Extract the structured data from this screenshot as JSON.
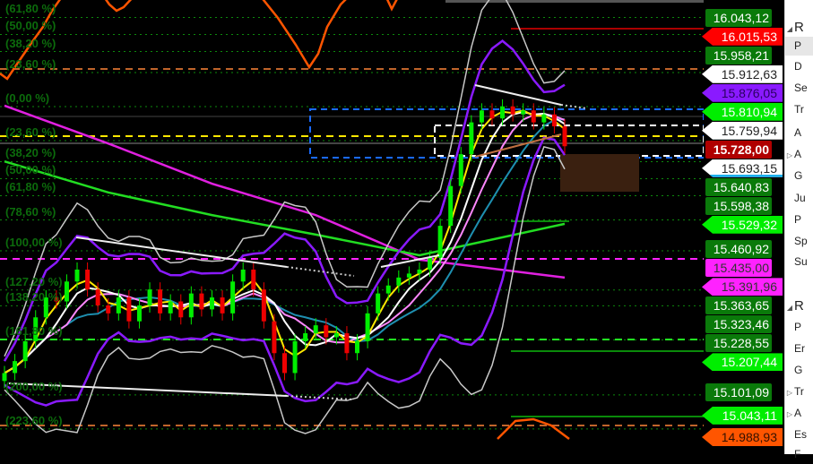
{
  "chart_data": {
    "type": "candlestick",
    "price_scale_ref": [
      16015.53,
      14988.93
    ],
    "closes": [
      15150,
      15180,
      15230,
      15290,
      15340,
      15330,
      15380,
      15410,
      15360,
      15320,
      15300,
      15340,
      15280,
      15320,
      15360,
      15300,
      15330,
      15290,
      15350,
      15310,
      15340,
      15300,
      15380,
      15410,
      15360,
      15280,
      15200,
      15150,
      15230,
      15250,
      15270,
      15240,
      15250,
      15200,
      15230,
      15300,
      15350,
      15370,
      15390,
      15400,
      15410,
      15440,
      15520,
      15620,
      15700,
      15780,
      15810,
      15790,
      15820,
      15800,
      15810,
      15780,
      15800,
      15770,
      15720
    ],
    "long_ma_magenta": {
      "index": [
        0,
        10,
        20,
        30,
        40,
        54
      ],
      "values": [
        15822,
        15727,
        15626,
        15547,
        15435,
        15390
      ],
      "color": "#e020e0"
    },
    "long_ma_green": {
      "index": [
        0,
        10,
        20,
        30,
        40,
        54
      ],
      "values": [
        15682,
        15604,
        15547,
        15498,
        15446,
        15525
      ],
      "color": "#22dd22"
    },
    "short_mas": [
      {
        "period": 3,
        "color": "#ffe800"
      },
      {
        "period": 5,
        "color": "#ffffff"
      },
      {
        "period": 7,
        "color": "#ff88ff"
      },
      {
        "period": 10,
        "color": "#1e8fb0"
      }
    ],
    "bollinger": [
      {
        "period": 8,
        "k": 2,
        "color": "#8a1aff"
      },
      {
        "period": 8,
        "k": 2.8,
        "color": "#c8c8c8"
      }
    ],
    "fib_levels": [
      {
        "label": "(61,80 %)",
        "price": 16043.7
      },
      {
        "label": "(50,00 %)",
        "price": 16000.9
      },
      {
        "label": "(38,20 %)",
        "price": 15958.1
      },
      {
        "label": "(23,60 %)",
        "price": 15905.2
      },
      {
        "label": "(0,00 %)",
        "price": 15819.7
      },
      {
        "label": "(23,60 %)",
        "price": 15734.2
      },
      {
        "label": "(38,20 %)",
        "price": 15681.3
      },
      {
        "label": "(50,00 %)",
        "price": 15638.5
      },
      {
        "label": "(61,80 %)",
        "price": 15595.7
      },
      {
        "label": "(78,60 %)",
        "price": 15534.8
      },
      {
        "label": "(100,00 %)",
        "price": 15457.3
      },
      {
        "label": "(127,20 %)",
        "price": 15358.7
      },
      {
        "label": "(138,20 %)",
        "price": 15318.9
      },
      {
        "label": "(161,80 %)",
        "price": 15233.4
      },
      {
        "label": "(200,00 %)",
        "price": 15094.9
      },
      {
        "label": "(223,60 %)",
        "price": 15009.4
      }
    ],
    "price_tags": [
      {
        "text": "16.043,12",
        "price": 16043.12,
        "style": "box",
        "bg": "#0a7a0a",
        "fg": "#ffffff"
      },
      {
        "text": "15.958,21",
        "price": 15958.21,
        "style": "box",
        "bg": "#0a7a0a",
        "fg": "#ffffff"
      },
      {
        "text": "15.640,83",
        "price": 15640.83,
        "style": "box",
        "bg": "#0a7a0a",
        "fg": "#ffffff"
      },
      {
        "text": "15.598,38",
        "price": 15598.38,
        "style": "box",
        "bg": "#0a7a0a",
        "fg": "#ffffff"
      },
      {
        "text": "15.460,92",
        "price": 15460.92,
        "style": "box",
        "bg": "#0a7a0a",
        "fg": "#ffffff"
      },
      {
        "text": "15.435,00",
        "price": 15435.0,
        "style": "box",
        "bg": "#ff22ff",
        "fg": "#333333"
      },
      {
        "text": "15.363,65",
        "price": 15363.65,
        "style": "box",
        "bg": "#0a7a0a",
        "fg": "#ffffff"
      },
      {
        "text": "15.323,46",
        "price": 15323.46,
        "style": "box",
        "bg": "#0a7a0a",
        "fg": "#ffffff"
      },
      {
        "text": "15.228,55",
        "price": 15228.55,
        "style": "box",
        "bg": "#0a7a0a",
        "fg": "#ffffff"
      },
      {
        "text": "15.101,09",
        "price": 15101.09,
        "style": "box",
        "bg": "#0a7a0a",
        "fg": "#ffffff"
      },
      {
        "text": "16.015,53",
        "price": 16015.53,
        "style": "arrow",
        "bg": "#ff0000",
        "fg": "#ffffff"
      },
      {
        "text": "15.912,63",
        "price": 15912.63,
        "style": "arrow",
        "bg": "#ffffff",
        "fg": "#222222"
      },
      {
        "text": "15.876,05",
        "price": 15876.05,
        "style": "arrow",
        "bg": "#8a1aff",
        "fg": "#2a0060"
      },
      {
        "text": "15.810,94",
        "price": 15810.94,
        "style": "arrow",
        "bg": "#00ee00",
        "fg": "#ffffff"
      },
      {
        "text": "15.759,94",
        "price": 15759.94,
        "style": "arrow",
        "bg": "#ffffff",
        "fg": "#222222"
      },
      {
        "text": "15.693,15",
        "price": 15693.15,
        "style": "arrow",
        "bg": "#ffffff",
        "fg": "#222222",
        "border": "#1ab0ee"
      },
      {
        "text": "15.728,00",
        "price": 15728.0,
        "style": "box bold",
        "bg": "#b00000",
        "fg": "#ffffff"
      },
      {
        "text": "15.529,32",
        "price": 15529.32,
        "style": "arrow",
        "bg": "#00ee00",
        "fg": "#ffffff"
      },
      {
        "text": "15.391,96",
        "price": 15391.96,
        "style": "arrow",
        "bg": "#ff22ff",
        "fg": "#333333"
      },
      {
        "text": "15.207,44",
        "price": 15207.44,
        "style": "arrow",
        "bg": "#00ee00",
        "fg": "#ffffff"
      },
      {
        "text": "15.043,11",
        "price": 15043.11,
        "style": "arrow",
        "bg": "#00ee00",
        "fg": "#ffffff"
      },
      {
        "text": "14.988,93",
        "price": 14988.93,
        "style": "arrow",
        "bg": "#ff5500",
        "fg": "#331100"
      }
    ],
    "colors": {
      "up": "#00ee00",
      "down": "#ee0000",
      "grid": "#0c8a0c"
    }
  },
  "panel": {
    "items": [
      {
        "text": "R",
        "head": true,
        "tri": "◢"
      },
      {
        "text": "P",
        "sel": true
      },
      {
        "text": "D"
      },
      {
        "text": "Se"
      },
      {
        "text": "Tr"
      },
      {
        "text": "A"
      },
      {
        "text": "A",
        "tri": "▷"
      },
      {
        "text": "G"
      },
      {
        "text": "Ju"
      },
      {
        "text": "P"
      },
      {
        "text": "Sp"
      },
      {
        "text": "Su"
      },
      {
        "text": "R",
        "head": true,
        "tri": "◢"
      },
      {
        "text": "P"
      },
      {
        "text": "Er"
      },
      {
        "text": "G"
      },
      {
        "text": "Tr",
        "tri": "▷"
      },
      {
        "text": "A",
        "tri": "▷"
      },
      {
        "text": "Es"
      },
      {
        "text": "F"
      }
    ]
  }
}
